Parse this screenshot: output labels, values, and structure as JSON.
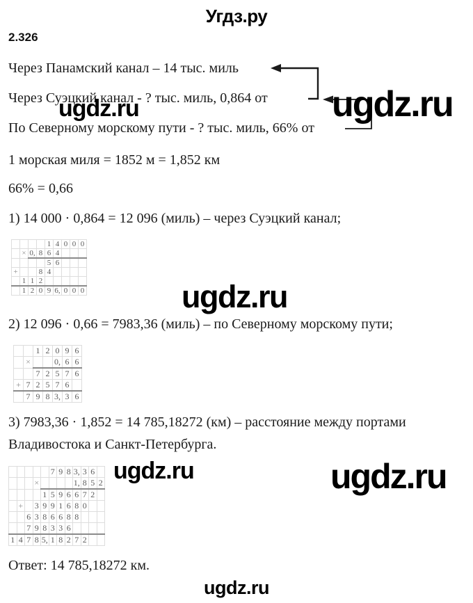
{
  "page": {
    "site_title": "Угдз.ру",
    "watermark": "ugdz.ru"
  },
  "problem": {
    "number": "2.326",
    "given": [
      "Через Панамский канал – 14 тыс. миль",
      "Через Суэцкий канал - ? тыс. миль, 0,864 от",
      "По Северному морскому пути - ? тыс. миль, 66% от"
    ],
    "facts": [
      "1 морская миля = 1852 м = 1,852 км",
      "66% = 0,66"
    ],
    "steps": [
      {
        "text": "1) 14 000 · 0,864 = 12 096 (миль) – через Суэцкий канал;"
      },
      {
        "text": "2) 12 096 · 0,66 = 7983,36 (миль) – по Северному морскому пути;"
      },
      {
        "text": "3) 7983,36 · 1,852 = 14 785,18272 (км) – расстояние между портами",
        "text2": "Владивостока и Санкт-Петербурга."
      }
    ],
    "answer": "Ответ: 14 785,18272 км."
  },
  "grids": {
    "grid1": {
      "cols": 9,
      "rows": [
        [
          "",
          "",
          "",
          "",
          "1",
          "4",
          "0",
          "0",
          "0"
        ],
        [
          "",
          "×",
          "0,",
          "8",
          "6",
          "4",
          "",
          "",
          ""
        ],
        [
          "",
          "",
          "",
          "",
          "5",
          "6",
          "",
          "",
          ""
        ],
        [
          "+",
          "",
          "",
          "8",
          "4",
          "",
          "",
          "",
          ""
        ],
        [
          "",
          "1",
          "1",
          "2",
          "",
          "",
          "",
          "",
          ""
        ],
        [
          "",
          "1",
          "2",
          "0",
          "9",
          "6,",
          "0",
          "0",
          "0"
        ]
      ],
      "rules": [
        {
          "after_row": 1,
          "from": 2,
          "to": 8
        },
        {
          "after_row": 4,
          "from": 0,
          "to": 8
        }
      ]
    },
    "grid2": {
      "cols": 7,
      "rows": [
        [
          "",
          "",
          "1",
          "2",
          "0",
          "9",
          "6"
        ],
        [
          "",
          "×",
          "",
          "",
          "0,",
          "6",
          "6"
        ],
        [
          "",
          "",
          "7",
          "2",
          "5",
          "7",
          "6"
        ],
        [
          "+",
          "7",
          "2",
          "5",
          "7",
          "6",
          ""
        ],
        [
          "",
          "7",
          "9",
          "8",
          "3,",
          "3",
          "6"
        ]
      ],
      "rules": [
        {
          "after_row": 1,
          "from": 2,
          "to": 6
        },
        {
          "after_row": 3,
          "from": 0,
          "to": 6
        }
      ]
    },
    "grid3": {
      "cols": 12,
      "rows": [
        [
          "",
          "",
          "",
          "",
          "",
          "7",
          "9",
          "8",
          "3,",
          "3",
          "6",
          ""
        ],
        [
          "",
          "",
          "",
          "×",
          "",
          "",
          "",
          "",
          "1,",
          "8",
          "5",
          "2"
        ],
        [
          "",
          "",
          "",
          "",
          "1",
          "5",
          "9",
          "6",
          "6",
          "7",
          "2",
          ""
        ],
        [
          "",
          "+",
          "",
          "3",
          "9",
          "9",
          "1",
          "6",
          "8",
          "0",
          "",
          ""
        ],
        [
          "",
          "",
          "6",
          "3",
          "8",
          "6",
          "6",
          "8",
          "8",
          "",
          "",
          ""
        ],
        [
          "",
          "",
          "7",
          "9",
          "8",
          "3",
          "3",
          "6",
          "",
          "",
          "",
          ""
        ],
        [
          "1",
          "4",
          "7",
          "8",
          "5,",
          "1",
          "8",
          "2",
          "7",
          "2",
          "",
          ""
        ]
      ],
      "rules": [
        {
          "after_row": 1,
          "from": 4,
          "to": 11
        },
        {
          "after_row": 5,
          "from": 0,
          "to": 11
        }
      ]
    }
  }
}
